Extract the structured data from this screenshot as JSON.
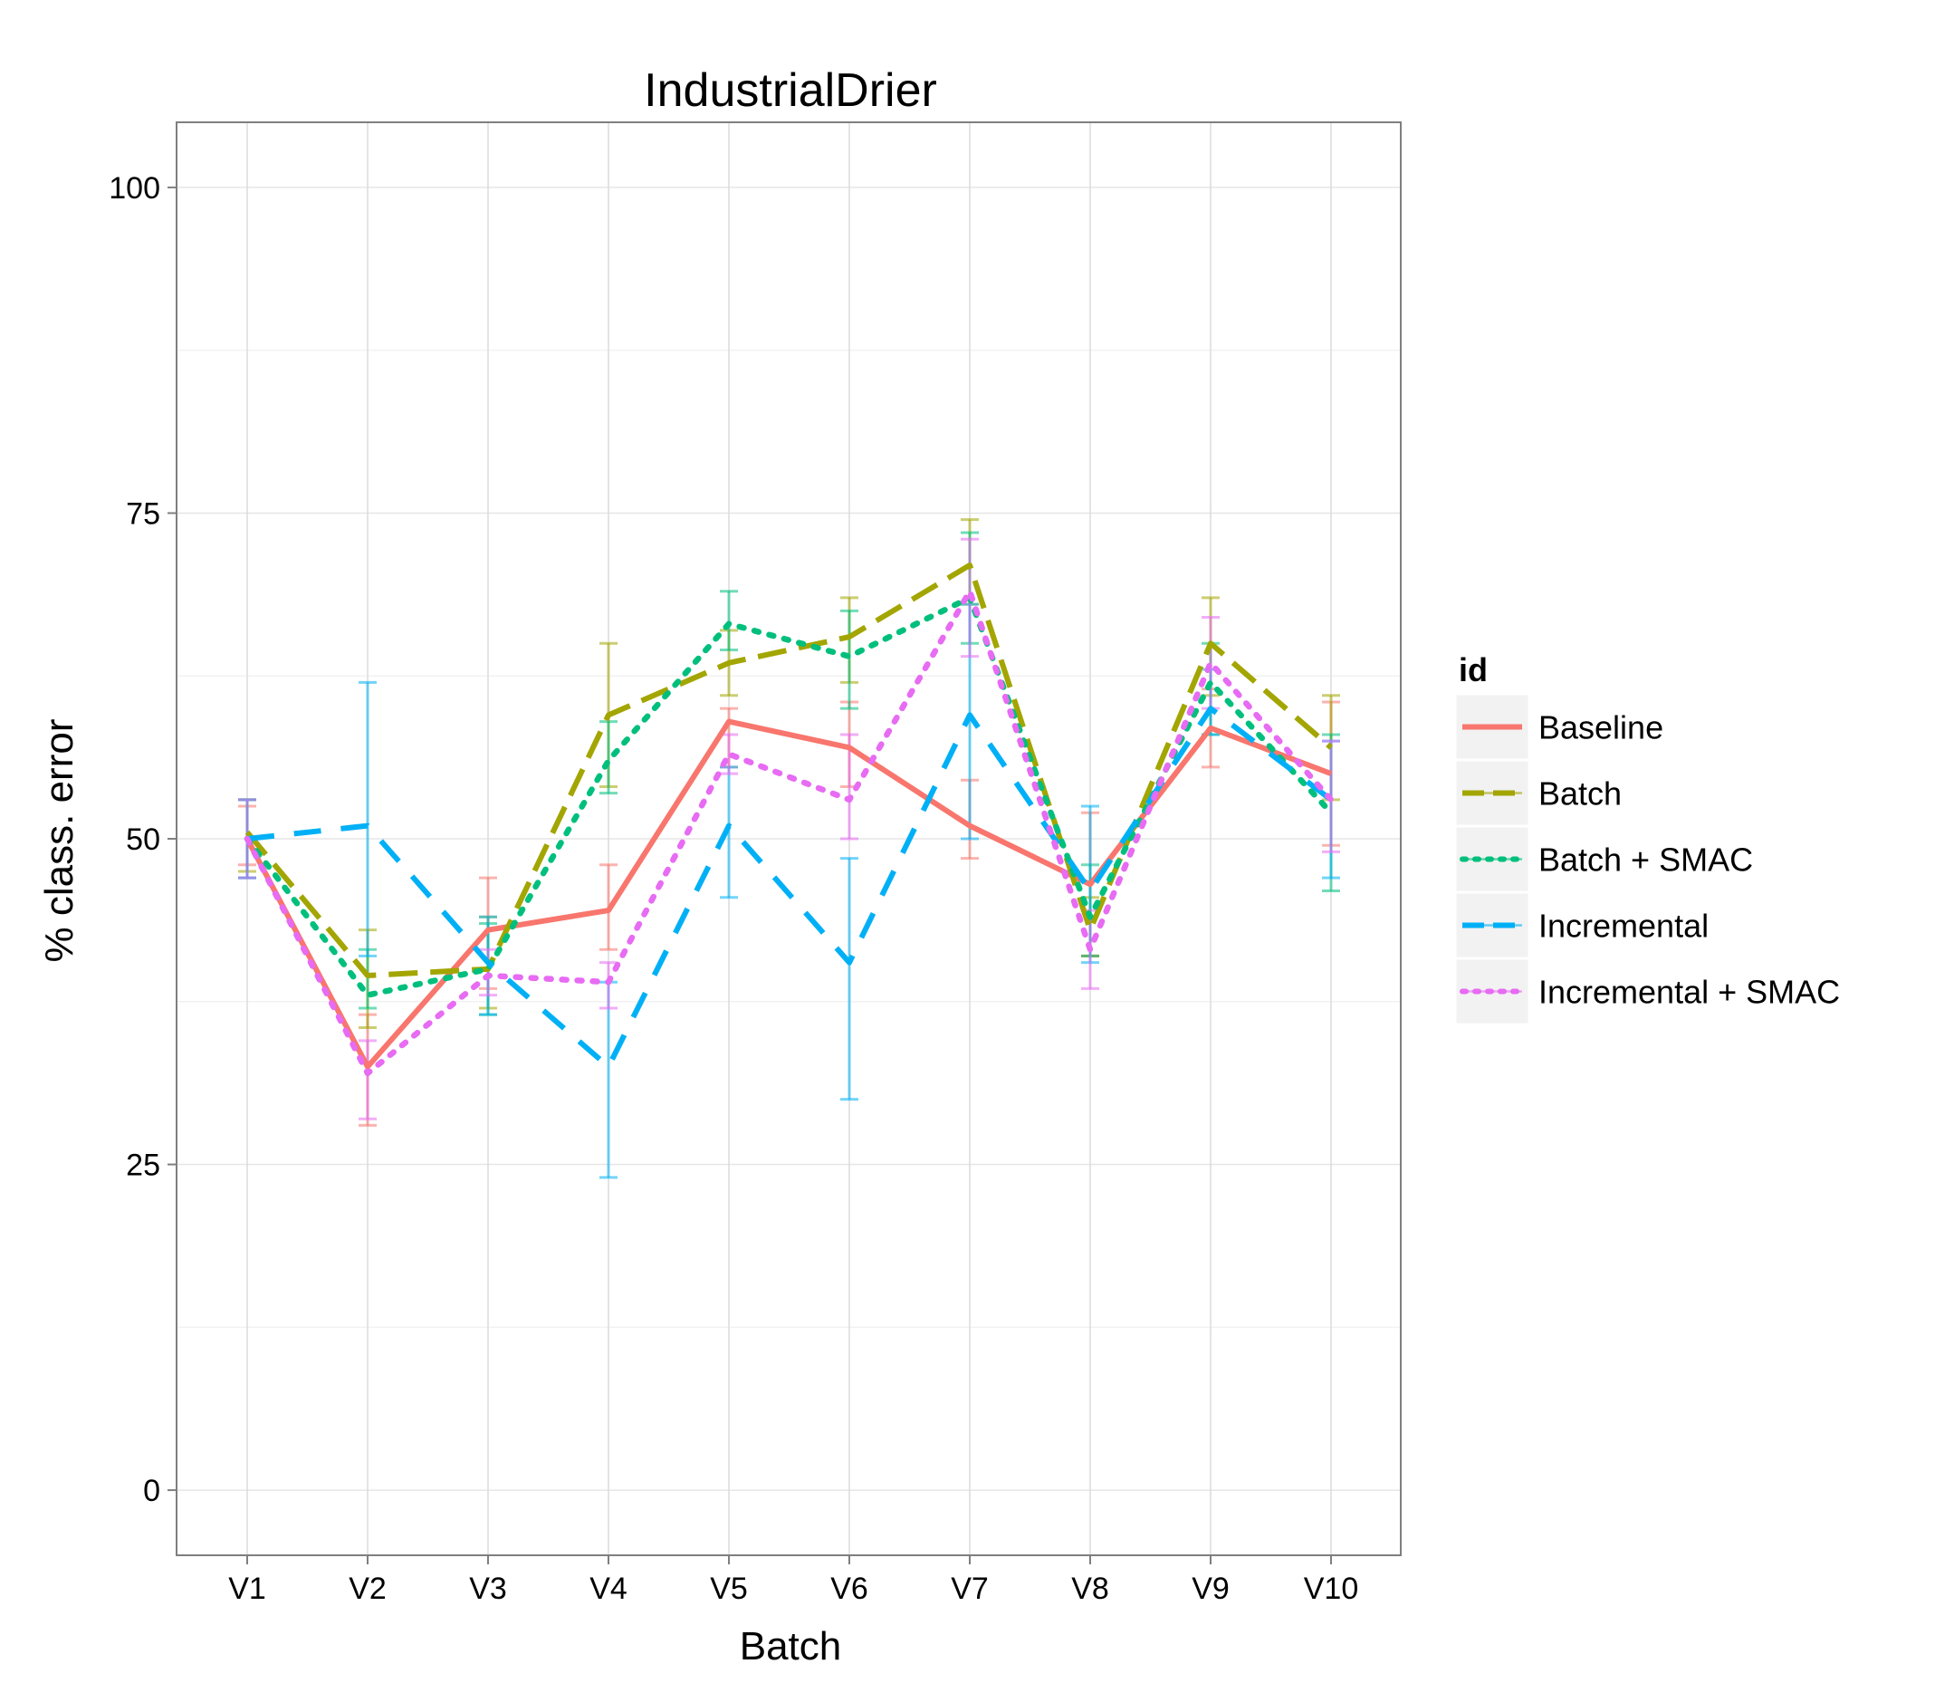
{
  "chart_data": {
    "type": "line",
    "title": "IndustrialDrier",
    "xlabel": "Batch",
    "ylabel": "% class. error",
    "categories": [
      "V1",
      "V2",
      "V3",
      "V4",
      "V5",
      "V6",
      "V7",
      "V8",
      "V9",
      "V10"
    ],
    "ylim": [
      -5,
      105
    ],
    "yticks": [
      0,
      25,
      50,
      75,
      100
    ],
    "grid": true,
    "legend": {
      "title": "id",
      "position": "right"
    },
    "series": [
      {
        "name": "Baseline",
        "color": "#F8766D",
        "dash": "solid",
        "values": [
          50.0,
          32.5,
          43.0,
          44.5,
          59.0,
          57.0,
          51.0,
          46.5,
          58.5,
          55.0
        ],
        "error_low": [
          48.0,
          28.0,
          38.5,
          41.5,
          55.5,
          54.0,
          48.5,
          41.0,
          55.5,
          49.5
        ],
        "error_high": [
          52.5,
          36.5,
          47.0,
          48.0,
          60.0,
          60.5,
          54.5,
          52.0,
          61.5,
          60.5
        ]
      },
      {
        "name": "Batch",
        "color": "#A3A500",
        "dash": "longdash",
        "values": [
          50.5,
          39.5,
          40.0,
          59.5,
          63.5,
          65.5,
          71.0,
          43.0,
          65.0,
          57.0
        ],
        "error_low": [
          47.5,
          35.5,
          37.0,
          54.0,
          61.0,
          62.0,
          68.0,
          41.0,
          61.0,
          53.0
        ],
        "error_high": [
          53.0,
          43.0,
          44.0,
          65.0,
          66.0,
          68.5,
          74.5,
          45.5,
          68.5,
          61.0
        ]
      },
      {
        "name": "Batch + SMAC",
        "color": "#00BF7D",
        "dash": "dotted",
        "values": [
          50.0,
          38.0,
          40.0,
          56.0,
          66.5,
          64.0,
          68.5,
          44.0,
          62.0,
          52.0
        ],
        "error_low": [
          47.0,
          37.0,
          36.5,
          53.5,
          64.5,
          60.0,
          65.0,
          41.0,
          58.0,
          46.0
        ],
        "error_high": [
          53.0,
          41.5,
          43.5,
          59.0,
          69.0,
          67.5,
          73.5,
          48.0,
          65.0,
          58.0
        ]
      },
      {
        "name": "Incremental",
        "color": "#00B0F6",
        "dash": "dashed",
        "values": [
          50.0,
          51.0,
          40.5,
          32.5,
          51.0,
          40.5,
          59.5,
          46.0,
          60.0,
          53.0
        ],
        "error_low": [
          47.0,
          41.0,
          36.5,
          24.0,
          45.5,
          30.0,
          50.0,
          40.5,
          58.0,
          47.0
        ],
        "error_high": [
          53.0,
          62.0,
          44.0,
          39.0,
          55.5,
          48.5,
          68.0,
          52.5,
          63.0,
          57.5
        ]
      },
      {
        "name": "Incremental + SMAC",
        "color": "#E76BF3",
        "dash": "dotted",
        "values": [
          50.0,
          32.0,
          39.5,
          39.0,
          56.5,
          53.0,
          69.0,
          41.5,
          63.5,
          53.0
        ],
        "error_low": [
          47.0,
          28.5,
          38.0,
          37.0,
          55.0,
          50.0,
          64.0,
          38.5,
          60.0,
          49.0
        ],
        "error_high": [
          53.0,
          34.5,
          41.5,
          40.5,
          58.0,
          58.0,
          73.0,
          44.5,
          67.0,
          57.5
        ]
      }
    ]
  }
}
